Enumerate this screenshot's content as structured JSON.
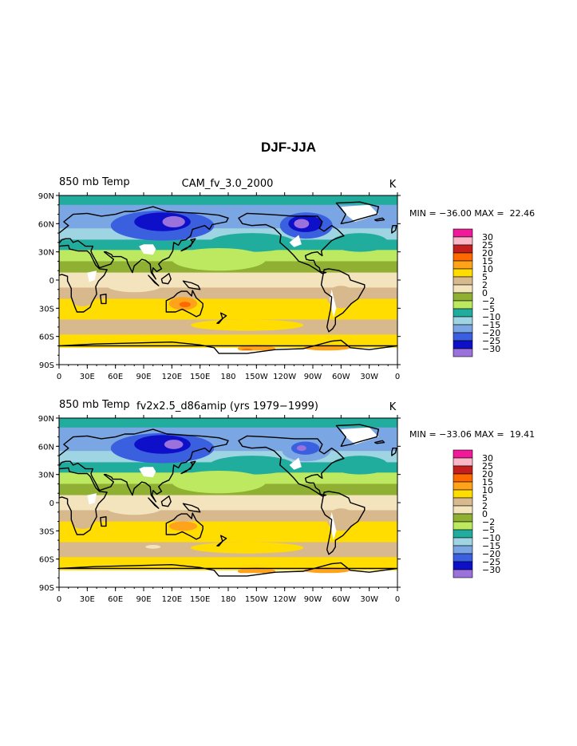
{
  "title": "DJF-JJA",
  "colors": {
    "land_outline": "#000000",
    "missing": "#ffffff"
  },
  "legend_palette": [
    {
      "label": "30",
      "color": "#f0199a"
    },
    {
      "label": "25",
      "color": "#f9b7c8"
    },
    {
      "label": "20",
      "color": "#c41e1e"
    },
    {
      "label": "15",
      "color": "#ff6a00"
    },
    {
      "label": "10",
      "color": "#ffa31a"
    },
    {
      "label": "5",
      "color": "#ffdd00"
    },
    {
      "label": "2",
      "color": "#d8b98e"
    },
    {
      "label": "0",
      "color": "#f3e4bd"
    },
    {
      "label": "−2",
      "color": "#8fb032"
    },
    {
      "label": "−5",
      "color": "#bce95f"
    },
    {
      "label": "−10",
      "color": "#21ad9e"
    },
    {
      "label": "−15",
      "color": "#9fd5e3"
    },
    {
      "label": "−20",
      "color": "#7aa6e3"
    },
    {
      "label": "−25",
      "color": "#3a60e0"
    },
    {
      "label": "−30",
      "color": "#0e0fc8"
    },
    {
      "label": "",
      "color": "#9b72dc"
    }
  ],
  "chart_data": [
    {
      "type": "heatmap",
      "subtype": "filled-contour map",
      "left_string": "850 mb Temp",
      "center_string": "CAM_fv_3.0_2000",
      "units": "K",
      "min_max": "MIN = −36.00 MAX =  22.46",
      "min": -36.0,
      "max": 22.46,
      "ylabels": [
        "90N",
        "60N",
        "30N",
        "0",
        "30S",
        "60S",
        "90S"
      ],
      "xlabels": [
        "0",
        "30E",
        "60E",
        "90E",
        "120E",
        "150E",
        "180",
        "150W",
        "120W",
        "90W",
        "60W",
        "30W",
        "0"
      ],
      "xlim": [
        0,
        360
      ],
      "ylim": [
        -90,
        90
      ],
      "contour_levels": [
        -30,
        -25,
        -20,
        -15,
        -10,
        -5,
        -2,
        0,
        2,
        5,
        10,
        15,
        20,
        25,
        30
      ],
      "legend_placement": "right"
    },
    {
      "type": "heatmap",
      "subtype": "filled-contour map",
      "left_string": "850 mb Temp",
      "center_string": "fv2x2.5_d86amip (yrs 1979−1999)",
      "units": "K",
      "min_max": "MIN = −33.06 MAX =  19.41",
      "min": -33.06,
      "max": 19.41,
      "ylabels": [
        "90N",
        "60N",
        "30N",
        "0",
        "30S",
        "60S",
        "90S"
      ],
      "xlabels": [
        "0",
        "30E",
        "60E",
        "90E",
        "120E",
        "150E",
        "180",
        "150W",
        "120W",
        "90W",
        "60W",
        "30W",
        "0"
      ],
      "xlim": [
        0,
        360
      ],
      "ylim": [
        -90,
        90
      ],
      "contour_levels": [
        -30,
        -25,
        -20,
        -15,
        -10,
        -5,
        -2,
        0,
        2,
        5,
        10,
        15,
        20,
        25,
        30
      ],
      "legend_placement": "right"
    }
  ]
}
